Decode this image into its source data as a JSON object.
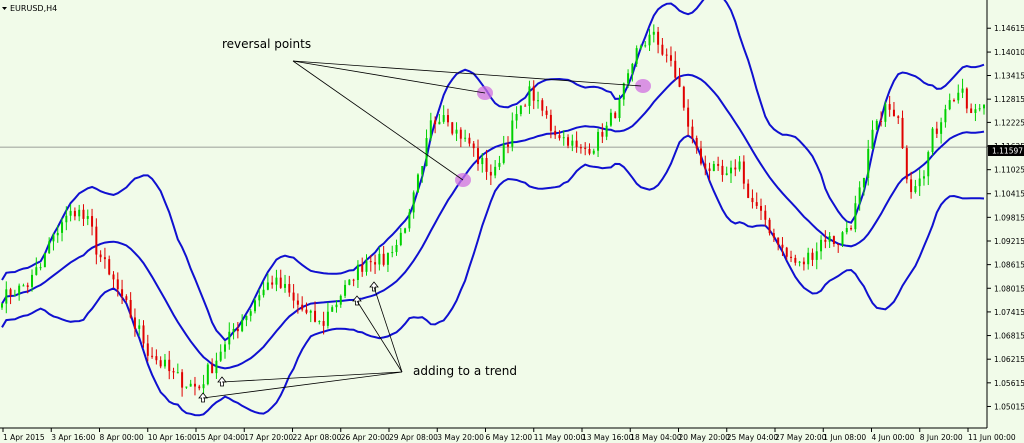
{
  "chart_data": {
    "type": "candlestick",
    "symbol_label": "EURUSD,H4",
    "current_price_label": "1.11597",
    "current_price": 1.11597,
    "ylim": [
      1.0457,
      1.1523
    ],
    "price_ticks": [
      "1.14615",
      "1.14010",
      "1.13415",
      "1.12815",
      "1.12225",
      "1.11625",
      "1.11025",
      "1.10415",
      "1.09815",
      "1.09215",
      "1.08615",
      "1.08015",
      "1.07415",
      "1.06815",
      "1.06215",
      "1.05615",
      "1.05015"
    ],
    "time_ticks": [
      "1 Apr 2015",
      "3 Apr 16:00",
      "8 Apr 00:00",
      "10 Apr 16:00",
      "15 Apr 04:00",
      "17 Apr 20:00",
      "22 Apr 08:00",
      "26 Apr 20:00",
      "29 Apr 08:00",
      "3 May 20:00",
      "6 May 12:00",
      "11 May 00:00",
      "13 May 16:00",
      "18 May 04:00",
      "20 May 20:00",
      "25 May 04:00",
      "27 May 20:00",
      "1 Jun 08:00",
      "4 Jun 00:00",
      "8 Jun 20:00",
      "11 Jun 00:00"
    ],
    "close_series": [
      1.078,
      1.0795,
      1.081,
      1.085,
      1.092,
      1.0975,
      1.1,
      1.097,
      1.088,
      1.082,
      1.076,
      1.07,
      1.064,
      1.061,
      1.058,
      1.056,
      1.055,
      1.06,
      1.065,
      1.07,
      1.074,
      1.079,
      1.082,
      1.08,
      1.076,
      1.073,
      1.071,
      1.076,
      1.08,
      1.085,
      1.088,
      1.087,
      1.091,
      1.097,
      1.108,
      1.122,
      1.125,
      1.12,
      1.117,
      1.112,
      1.109,
      1.117,
      1.124,
      1.13,
      1.125,
      1.12,
      1.118,
      1.115,
      1.116,
      1.12,
      1.125,
      1.133,
      1.142,
      1.144,
      1.14,
      1.133,
      1.12,
      1.112,
      1.11,
      1.108,
      1.112,
      1.102,
      1.098,
      1.093,
      1.088,
      1.086,
      1.089,
      1.093,
      1.092,
      1.096,
      1.105,
      1.12,
      1.126,
      1.122,
      1.106,
      1.11,
      1.12,
      1.127,
      1.13,
      1.124,
      1.127
    ],
    "annotations": [
      "reversal points",
      "adding to a trend"
    ]
  }
}
